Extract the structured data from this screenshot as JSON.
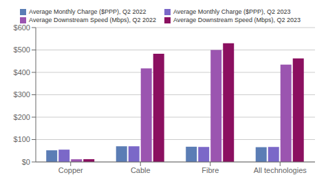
{
  "chart_data": {
    "type": "bar",
    "categories": [
      "Copper",
      "Cable",
      "Fibre",
      "All technologies"
    ],
    "series": [
      {
        "name": "Average Monthly Charge ($PPP), Q2 2022",
        "color": "#5b7db5",
        "values": [
          52,
          70,
          68,
          66
        ]
      },
      {
        "name": "Average Monthly Charge ($PPP), Q2 2023",
        "color": "#7b68c8",
        "values": [
          55,
          70,
          67,
          67
        ]
      },
      {
        "name": "Average Downstream Speed (Mbps), Q2 2022",
        "color": "#9b55b0",
        "values": [
          12,
          418,
          500,
          435
        ]
      },
      {
        "name": "Average Downstream Speed (Mbps), Q2 2023",
        "color": "#8b1060",
        "values": [
          12,
          483,
          530,
          462
        ]
      }
    ],
    "ylim": [
      0,
      600
    ],
    "yticks": [
      {
        "value": 0,
        "label": "$0"
      },
      {
        "value": 100,
        "label": "$100"
      },
      {
        "value": 200,
        "label": "$200"
      },
      {
        "value": 300,
        "label": "$300"
      },
      {
        "value": 400,
        "label": "$400"
      },
      {
        "value": 500,
        "label": "$500"
      },
      {
        "value": 600,
        "label": "$600"
      }
    ],
    "grid": true,
    "legend": "top"
  }
}
